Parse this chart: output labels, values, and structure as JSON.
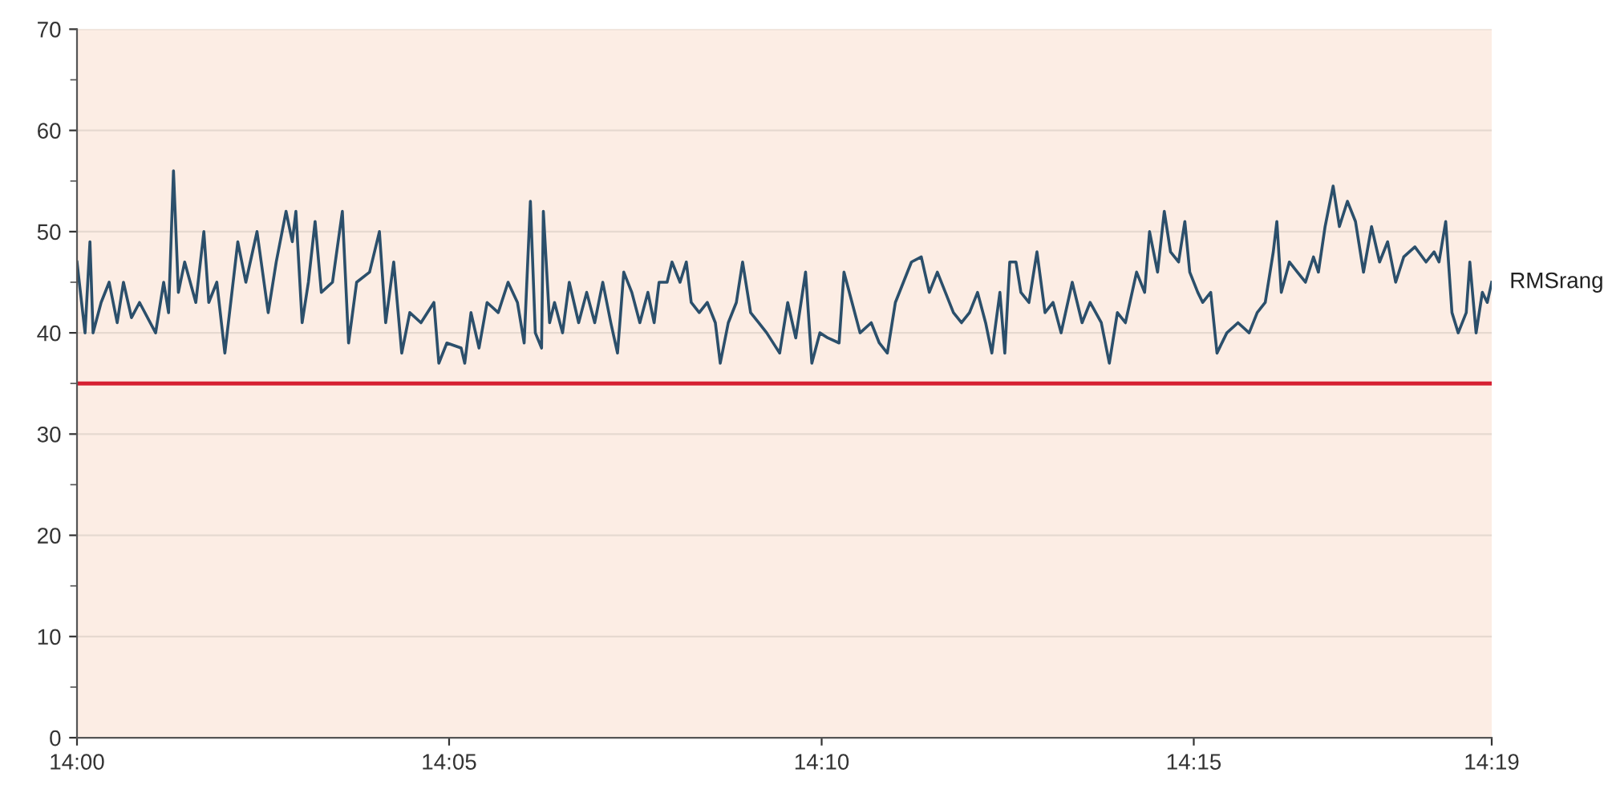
{
  "chart_data": {
    "type": "line",
    "x": [
      14.0,
      14.0018,
      14.0029,
      14.0036,
      14.0054,
      14.0072,
      14.009,
      14.0104,
      14.0122,
      14.014,
      14.0176,
      14.0194,
      14.0205,
      14.0216,
      14.0227,
      14.0241,
      14.0266,
      14.0284,
      14.0295,
      14.0313,
      14.0331,
      14.036,
      14.0378,
      14.0403,
      14.0428,
      14.0446,
      14.0468,
      14.0482,
      14.049,
      14.0504,
      14.0518,
      14.0533,
      14.0547,
      14.0572,
      14.0594,
      14.0608,
      14.0626,
      14.0655,
      14.0677,
      14.0691,
      14.0709,
      14.0727,
      14.0745,
      14.077,
      14.0799,
      14.081,
      14.0828,
      14.086,
      14.0868,
      14.0882,
      14.09,
      14.0918,
      14.0943,
      14.0965,
      14.0986,
      14.1001,
      14.1015,
      14.1026,
      14.104,
      14.1044,
      14.1058,
      14.1069,
      14.1087,
      14.1102,
      14.1123,
      14.1141,
      14.1159,
      14.1177,
      14.1195,
      14.121,
      14.1224,
      14.1242,
      14.126,
      14.1278,
      14.1292,
      14.1303,
      14.1321,
      14.1332,
      14.135,
      14.1364,
      14.1375,
      14.1393,
      14.1411,
      14.1429,
      14.144,
      14.1458,
      14.1476,
      14.149,
      14.1508,
      14.1526,
      14.1544,
      14.1573,
      14.1591,
      14.1609,
      14.1631,
      14.1645,
      14.1663,
      14.1681,
      14.1706,
      14.1717,
      14.1735,
      14.1753,
      14.1778,
      14.1796,
      14.1814,
      14.1832,
      14.185,
      14.1868,
      14.189,
      14.1908,
      14.1926,
      14.1944,
      14.1962,
      14.198,
      14.1998,
      14.2016,
      14.2034,
      14.2048,
      14.2066,
      14.2077,
      14.2088,
      14.2102,
      14.2113,
      14.2131,
      14.2149,
      14.2167,
      14.2185,
      14.2203,
      14.2228,
      14.225,
      14.2268,
      14.2293,
      14.2311,
      14.2329,
      14.2347,
      14.2372,
      14.239,
      14.2401,
      14.2419,
      14.2434,
      14.2448,
      14.2466,
      14.248,
      14.2491,
      14.2509,
      14.252,
      14.2538,
      14.2552,
      14.2574,
      14.2599,
      14.2624,
      14.2642,
      14.266,
      14.2678,
      14.2686,
      14.2696,
      14.2714,
      14.2732,
      14.275,
      14.2768,
      14.2779,
      14.2794,
      14.2812,
      14.2826,
      14.2844,
      14.2862,
      14.288,
      14.2898,
      14.2916,
      14.2934,
      14.2952,
      14.297,
      14.2995,
      14.302,
      14.3038,
      14.3049,
      14.3064,
      14.3078,
      14.3092,
      14.311,
      14.3118,
      14.3132,
      14.3146,
      14.3157,
      14.3167
    ],
    "series": [
      {
        "name": "RMSrang",
        "color": "#2b4f6b",
        "values": [
          47,
          40,
          49,
          40,
          43,
          45,
          41,
          45,
          41.5,
          43,
          40,
          45,
          42,
          56,
          44,
          47,
          43,
          50,
          43,
          45,
          38,
          49,
          45,
          50,
          42,
          47,
          52,
          49,
          52,
          41,
          45,
          51,
          44,
          45,
          52,
          39,
          45,
          46,
          50,
          41,
          47,
          38,
          42,
          41,
          43,
          37,
          39,
          38.5,
          37,
          42,
          38.5,
          43,
          42,
          45,
          43,
          39,
          53,
          40,
          38.5,
          52,
          41,
          43,
          40,
          45,
          41,
          44,
          41,
          45,
          41,
          38,
          46,
          44,
          41,
          44,
          41,
          45,
          45,
          47,
          45,
          47,
          43,
          42,
          43,
          41,
          37,
          41,
          43,
          47,
          42,
          41,
          40,
          38,
          43,
          39.5,
          46,
          37,
          40,
          39.5,
          39,
          46,
          43,
          40,
          41,
          39,
          38,
          43,
          45,
          47,
          47.5,
          44,
          46,
          44,
          42,
          41,
          42,
          44,
          41,
          38,
          44,
          38,
          47,
          47,
          44,
          43,
          48,
          42,
          43,
          40,
          45,
          41,
          43,
          41,
          37,
          42,
          41,
          46,
          44,
          50,
          46,
          52,
          48,
          47,
          51,
          46,
          44,
          43,
          44,
          38,
          40,
          41,
          40,
          42,
          43,
          48,
          51,
          44,
          47,
          46,
          45,
          47.5,
          46,
          50.5,
          54.5,
          50.5,
          53,
          51,
          46,
          50.5,
          47,
          49,
          45,
          47.5,
          48.5,
          47,
          48,
          47,
          51,
          42,
          40,
          42,
          47,
          40,
          44,
          43,
          45
        ]
      }
    ],
    "xlim": [
      14.0,
      14.3167
    ],
    "xticks": [
      {
        "value": 14.0,
        "label": "14:00"
      },
      {
        "value": 14.0833,
        "label": "14:05"
      },
      {
        "value": 14.1667,
        "label": "14:10"
      },
      {
        "value": 14.25,
        "label": "14:15"
      },
      {
        "value": 14.3167,
        "label": "14:19"
      }
    ],
    "ylim": [
      0,
      70
    ],
    "yticks": [
      0,
      10,
      20,
      30,
      40,
      50,
      60,
      70
    ],
    "ref_lines": [
      {
        "axis": "y",
        "value": 35,
        "color": "#d62032"
      }
    ],
    "grid": "y",
    "legend": false,
    "marker": "none",
    "line_style": "solid"
  }
}
